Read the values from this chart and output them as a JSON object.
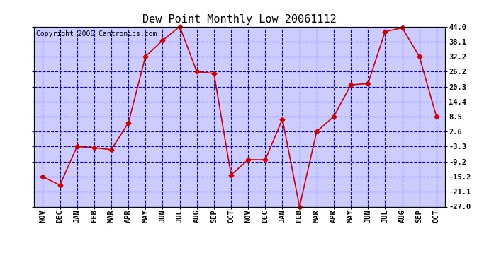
{
  "title": "Dew Point Monthly Low 20061112",
  "copyright": "Copyright 2006 Cantronics.com",
  "x_labels": [
    "NOV",
    "DEC",
    "JAN",
    "FEB",
    "MAR",
    "APR",
    "MAY",
    "JUN",
    "JUL",
    "AUG",
    "SEP",
    "OCT",
    "NOV",
    "DEC",
    "JAN",
    "FEB",
    "MAR",
    "APR",
    "MAY",
    "JUN",
    "JUL",
    "AUG",
    "SEP",
    "OCT"
  ],
  "y_values": [
    -15.2,
    -18.5,
    -3.3,
    -3.8,
    -4.5,
    6.0,
    32.2,
    38.5,
    44.0,
    26.2,
    25.5,
    -14.5,
    -8.5,
    -8.5,
    7.5,
    -27.0,
    2.6,
    8.5,
    21.0,
    21.5,
    42.0,
    43.5,
    32.2,
    8.5
  ],
  "y_ticks": [
    44.0,
    38.1,
    32.2,
    26.2,
    20.3,
    14.4,
    8.5,
    2.6,
    -3.3,
    -9.2,
    -15.2,
    -21.1,
    -27.0
  ],
  "y_min": -27.0,
  "y_max": 44.0,
  "line_color": "#CC0000",
  "marker_color": "#000000",
  "bg_color": "#CCCCFF",
  "fig_bg_color": "#FFFFFF",
  "grid_color": "#0000CC",
  "title_color": "#000000",
  "title_fontsize": 11,
  "copyright_fontsize": 7,
  "tick_fontsize": 7.5,
  "dpi": 100
}
